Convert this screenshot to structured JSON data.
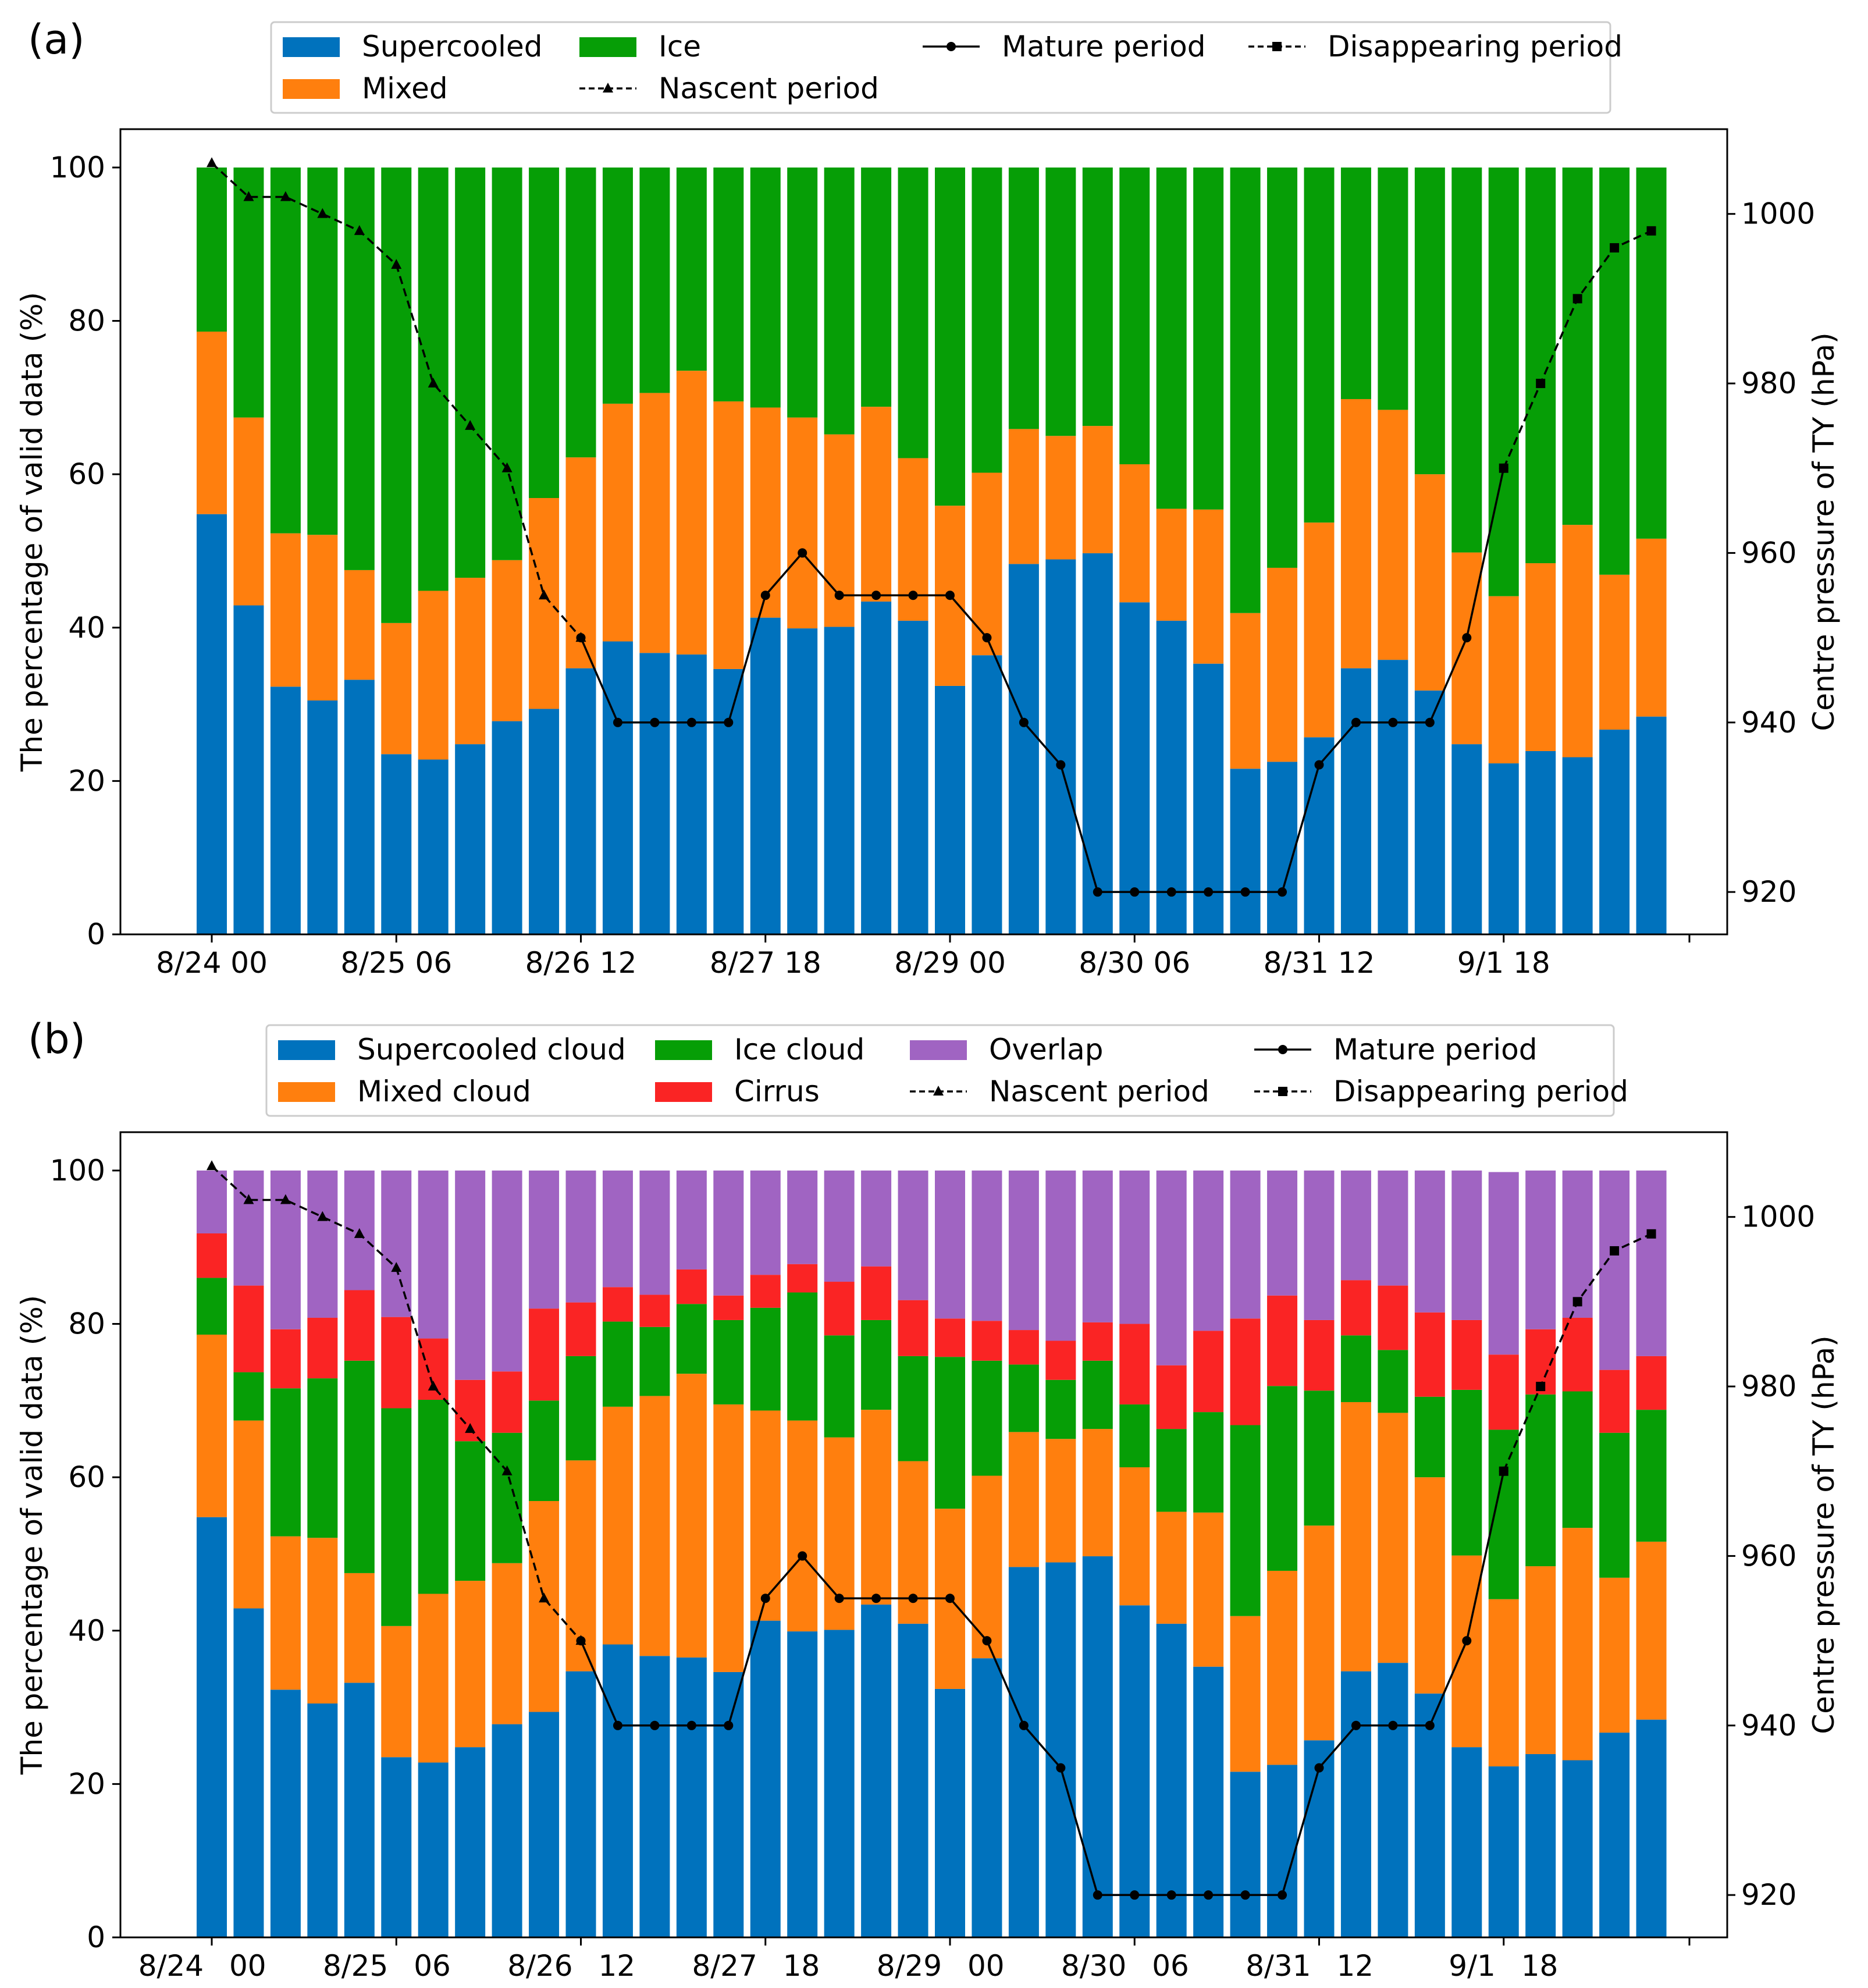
{
  "colors": {
    "supercooled": "#0072bd",
    "mixed": "#ff7f0e",
    "ice": "#069e06",
    "cirrus": "#fa2424",
    "overlap": "#a064c2",
    "line": "#000000"
  },
  "chart_data": [
    {
      "panel_label": "(a)",
      "type": "bar",
      "stacked": true,
      "x_tick_labels": [
        "8/24 00",
        "8/25 06",
        "8/26 12",
        "8/27 18",
        "8/29 00",
        "8/30 06",
        "8/31 12",
        "9/1 18"
      ],
      "ylabel": "The percentage of valid data (%)",
      "ylim": [
        0,
        105
      ],
      "y_ticks": [
        0,
        20,
        40,
        60,
        80,
        100
      ],
      "y2label": "Centre pressure of TY (hPa)",
      "y2lim": [
        915,
        1010
      ],
      "y2_ticks": [
        920,
        940,
        960,
        980,
        1000
      ],
      "legend": {
        "bars": [
          {
            "key": "supercooled",
            "label": "Supercooled"
          },
          {
            "key": "mixed",
            "label": "Mixed"
          },
          {
            "key": "ice",
            "label": "Ice"
          }
        ],
        "lines": [
          {
            "key": "nascent",
            "label": "Nascent period"
          },
          {
            "key": "mature",
            "label": "Mature period"
          },
          {
            "key": "disappearing",
            "label": "Disappearing period"
          }
        ]
      },
      "series": [
        {
          "key": "supercooled",
          "name": "Supercooled",
          "values": [
            54.8,
            42.9,
            32.3,
            30.5,
            33.2,
            23.5,
            22.8,
            24.8,
            27.8,
            29.4,
            34.7,
            38.2,
            36.7,
            36.5,
            34.6,
            41.3,
            39.9,
            40.1,
            43.4,
            40.9,
            32.4,
            36.4,
            48.3,
            48.9,
            49.7,
            43.3,
            40.9,
            35.3,
            21.6,
            22.5,
            25.7,
            34.7,
            35.8,
            31.8,
            24.8,
            22.3,
            23.9,
            23.1,
            26.7,
            28.4
          ]
        },
        {
          "key": "mixed",
          "name": "Mixed",
          "values": [
            23.8,
            24.5,
            20.0,
            21.6,
            14.3,
            17.1,
            22.0,
            21.7,
            21.0,
            27.5,
            27.5,
            31.0,
            33.9,
            37.0,
            34.9,
            27.4,
            27.5,
            25.1,
            25.4,
            21.2,
            23.5,
            23.8,
            17.6,
            16.1,
            16.6,
            18.0,
            14.6,
            20.1,
            20.3,
            25.3,
            28.0,
            35.1,
            32.6,
            28.2,
            25.0,
            21.8,
            24.5,
            30.3,
            20.2,
            23.2
          ]
        },
        {
          "key": "ice",
          "name": "Ice",
          "values": [
            21.4,
            32.6,
            47.7,
            47.9,
            52.5,
            59.4,
            55.2,
            53.5,
            51.2,
            43.1,
            37.8,
            30.8,
            29.4,
            26.5,
            30.5,
            31.3,
            32.6,
            34.8,
            31.2,
            37.9,
            44.1,
            39.8,
            34.1,
            35.0,
            33.7,
            38.7,
            44.5,
            44.6,
            58.1,
            52.2,
            46.3,
            30.2,
            31.6,
            40.0,
            50.2,
            55.9,
            51.6,
            46.6,
            53.1,
            48.4
          ]
        }
      ],
      "pressure_lines": [
        {
          "key": "nascent",
          "name": "Nascent period",
          "style": "dashed",
          "marker": "triangle",
          "start_index": 0,
          "values": [
            1006,
            1002,
            1002,
            1000,
            998,
            994,
            980,
            975,
            970,
            955,
            950
          ]
        },
        {
          "key": "mature",
          "name": "Mature period",
          "style": "solid",
          "marker": "circle",
          "start_index": 10,
          "values": [
            950,
            940,
            940,
            940,
            940,
            955,
            960,
            955,
            955,
            955,
            955,
            950,
            940,
            935,
            920,
            920,
            920,
            920,
            920,
            920,
            935,
            940,
            940,
            940,
            950,
            970
          ]
        },
        {
          "key": "disappearing",
          "name": "Disappearing period",
          "style": "dashed",
          "marker": "square",
          "start_index": 35,
          "values": [
            970,
            980,
            990,
            996,
            998
          ]
        }
      ]
    },
    {
      "panel_label": "(b)",
      "type": "bar",
      "stacked": true,
      "x_tick_labels": [
        "8/24",
        "00",
        "8/25",
        "06",
        "8/26",
        "12",
        "8/27",
        "18",
        "8/29",
        "00",
        "8/30",
        "06",
        "8/31",
        "12",
        "9/1",
        "18"
      ],
      "ylabel": "The percentage of valid data (%)",
      "ylim": [
        0,
        105
      ],
      "y_ticks": [
        0,
        20,
        40,
        60,
        80,
        100
      ],
      "y2label": "Centre pressure of TY (hPa)",
      "y2lim": [
        915,
        1010
      ],
      "y2_ticks": [
        920,
        940,
        960,
        980,
        1000
      ],
      "legend": {
        "bars": [
          {
            "key": "supercooled",
            "label": "Supercooled cloud"
          },
          {
            "key": "mixed",
            "label": "Mixed cloud"
          },
          {
            "key": "ice",
            "label": "Ice cloud"
          },
          {
            "key": "cirrus",
            "label": "Cirrus"
          },
          {
            "key": "overlap",
            "label": "Overlap"
          }
        ],
        "lines": [
          {
            "key": "mature",
            "label": "Mature period"
          },
          {
            "key": "nascent",
            "label": "Nascent period"
          },
          {
            "key": "disappearing",
            "label": "Disappearing period"
          }
        ]
      },
      "series": [
        {
          "key": "supercooled",
          "name": "Supercooled cloud",
          "values": [
            54.8,
            42.9,
            32.3,
            30.5,
            33.2,
            23.5,
            22.8,
            24.8,
            27.8,
            29.4,
            34.7,
            38.2,
            36.7,
            36.5,
            34.6,
            41.3,
            39.9,
            40.1,
            43.4,
            40.9,
            32.4,
            36.4,
            48.3,
            48.9,
            49.7,
            43.3,
            40.9,
            35.3,
            21.6,
            22.5,
            25.7,
            34.7,
            35.8,
            31.8,
            24.8,
            22.3,
            23.9,
            23.1,
            26.7,
            28.4
          ]
        },
        {
          "key": "mixed",
          "name": "Mixed cloud",
          "values": [
            23.8,
            24.5,
            20.0,
            21.6,
            14.3,
            17.1,
            22.0,
            21.7,
            21.0,
            27.5,
            27.5,
            31.0,
            33.9,
            37.0,
            34.9,
            27.4,
            27.5,
            25.1,
            25.4,
            21.2,
            23.5,
            23.8,
            17.6,
            16.1,
            16.6,
            18.0,
            14.6,
            20.1,
            20.3,
            25.3,
            28.0,
            35.1,
            32.6,
            28.2,
            25.0,
            21.8,
            24.5,
            30.3,
            20.2,
            23.2
          ]
        },
        {
          "key": "ice",
          "name": "Ice cloud",
          "values": [
            7.4,
            6.3,
            19.3,
            20.8,
            27.7,
            28.4,
            25.3,
            18.2,
            17.0,
            13.1,
            13.6,
            11.1,
            9.0,
            9.1,
            11.0,
            13.4,
            16.7,
            13.3,
            11.7,
            13.7,
            19.8,
            15.0,
            8.8,
            7.7,
            8.9,
            8.2,
            10.8,
            13.1,
            24.9,
            24.1,
            17.6,
            8.7,
            8.2,
            10.5,
            21.6,
            22.1,
            22.4,
            17.8,
            18.9,
            17.2
          ]
        },
        {
          "key": "cirrus",
          "name": "Cirrus",
          "values": [
            5.8,
            11.3,
            7.7,
            7.9,
            9.2,
            11.9,
            8.0,
            8.0,
            8.0,
            12.0,
            7.0,
            4.5,
            4.2,
            4.5,
            3.2,
            4.3,
            3.7,
            7.0,
            7.0,
            7.3,
            5.0,
            5.2,
            4.5,
            5.1,
            5.0,
            10.5,
            8.3,
            10.6,
            13.9,
            11.8,
            9.2,
            7.2,
            8.4,
            11.0,
            9.1,
            9.8,
            8.5,
            9.6,
            8.2,
            7.0
          ]
        },
        {
          "key": "overlap",
          "name": "Overlap",
          "values": [
            8.2,
            15.0,
            20.7,
            19.2,
            15.6,
            19.1,
            21.9,
            27.3,
            26.2,
            18.0,
            17.2,
            15.2,
            16.2,
            12.9,
            16.3,
            13.6,
            12.2,
            14.5,
            12.5,
            16.9,
            19.3,
            19.6,
            20.8,
            22.2,
            19.8,
            20.0,
            25.4,
            20.9,
            19.3,
            16.3,
            19.5,
            14.3,
            15.0,
            18.5,
            19.5,
            23.8,
            20.7,
            19.2,
            26.0,
            24.2
          ]
        }
      ],
      "pressure_lines": [
        {
          "key": "nascent",
          "name": "Nascent period",
          "style": "dashed",
          "marker": "triangle",
          "start_index": 0,
          "values": [
            1006,
            1002,
            1002,
            1000,
            998,
            994,
            980,
            975,
            970,
            955,
            950
          ]
        },
        {
          "key": "mature",
          "name": "Mature period",
          "style": "solid",
          "marker": "circle",
          "start_index": 10,
          "values": [
            950,
            940,
            940,
            940,
            940,
            955,
            960,
            955,
            955,
            955,
            955,
            950,
            940,
            935,
            920,
            920,
            920,
            920,
            920,
            920,
            935,
            940,
            940,
            940,
            950,
            970
          ]
        },
        {
          "key": "disappearing",
          "name": "Disappearing period",
          "style": "dashed",
          "marker": "square",
          "start_index": 35,
          "values": [
            970,
            980,
            990,
            996,
            998
          ]
        }
      ]
    }
  ]
}
